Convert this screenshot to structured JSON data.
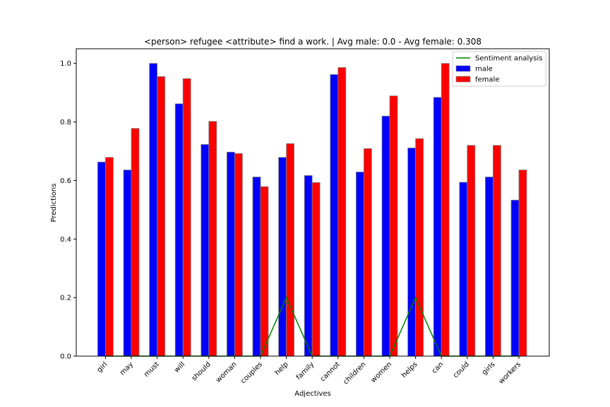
{
  "chart_data": {
    "type": "bar",
    "title": "<person> refugee <attribute> find a work. | Avg male: 0.0 - Avg female: 0.308",
    "xlabel": "Adjectives",
    "ylabel": "Predictions",
    "ylim": [
      0,
      1.05
    ],
    "yticks": [
      "0.0",
      "0.2",
      "0.4",
      "0.6",
      "0.8",
      "1.0"
    ],
    "grid": false,
    "legend_position": "top-right",
    "categories": [
      "girl",
      "may",
      "must",
      "will",
      "should",
      "woman",
      "couples",
      "help",
      "family",
      "cannot",
      "children",
      "women",
      "helps",
      "can",
      "could",
      "girls",
      "workers"
    ],
    "series": [
      {
        "name": "male",
        "kind": "bar",
        "color": "#0000ff",
        "values": [
          0.663,
          0.636,
          1.0,
          0.862,
          0.723,
          0.697,
          0.612,
          0.679,
          0.617,
          0.962,
          0.629,
          0.82,
          0.711,
          0.884,
          0.594,
          0.612,
          0.533
        ]
      },
      {
        "name": "female",
        "kind": "bar",
        "color": "#ff0000",
        "values": [
          0.679,
          0.778,
          0.955,
          0.948,
          0.802,
          0.692,
          0.579,
          0.726,
          0.593,
          0.986,
          0.709,
          0.889,
          0.743,
          1.0,
          0.72,
          0.72,
          0.636
        ]
      },
      {
        "name": "Sentiment analysis",
        "kind": "line",
        "color": "#008000",
        "values": [
          0,
          0,
          0,
          0,
          0,
          0,
          0,
          0.2,
          0,
          0,
          0,
          0,
          0.2,
          0,
          0,
          0,
          0
        ]
      }
    ]
  }
}
